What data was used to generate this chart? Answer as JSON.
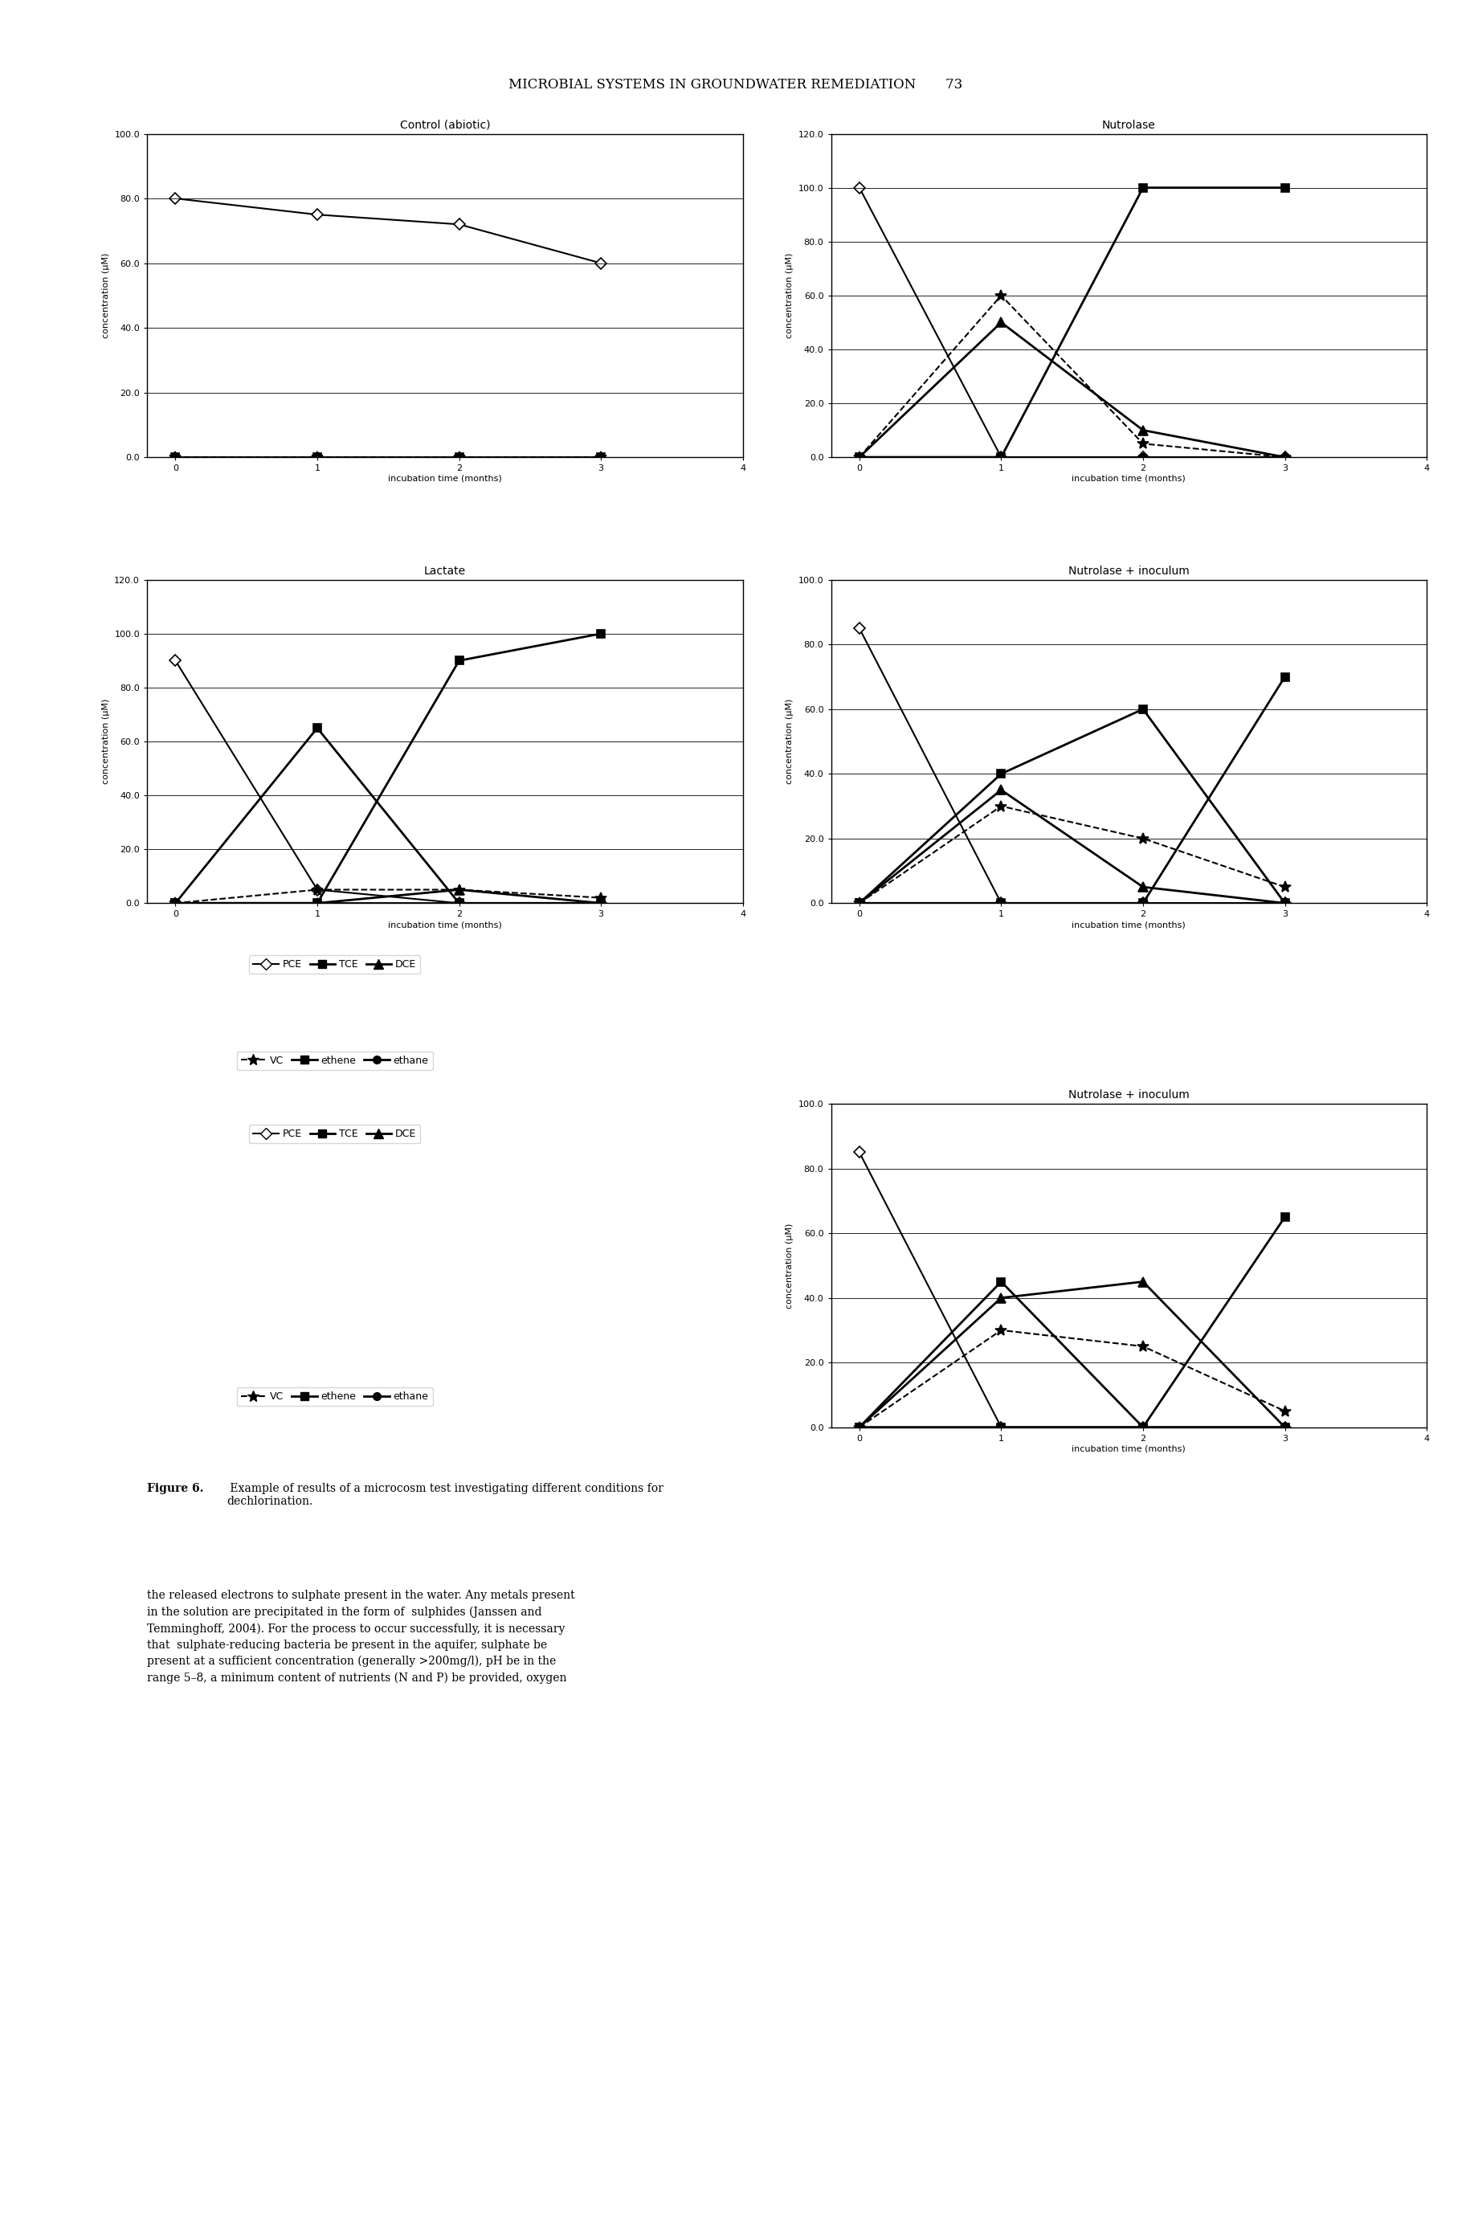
{
  "page_header": "MICROBIAL SYSTEMS IN GROUNDWATER REMEDIATION     73",
  "plots": {
    "control_abiotic": {
      "title": "Control (abiotic)",
      "ylim": [
        0,
        100
      ],
      "yticks": [
        0.0,
        20.0,
        40.0,
        60.0,
        80.0,
        100.0
      ],
      "xlim": [
        -0.2,
        4
      ],
      "xticks": [
        0,
        1,
        2,
        3,
        4
      ],
      "PCE": [
        80,
        75,
        72,
        60
      ],
      "TCE": [
        0,
        0,
        0,
        0
      ],
      "DCE": [
        null,
        null,
        null,
        null
      ],
      "VC": [
        0,
        0,
        0,
        0
      ],
      "ethene": [
        null,
        null,
        null,
        null
      ],
      "ethane": [
        null,
        null,
        null,
        null
      ]
    },
    "nutrolase": {
      "title": "Nutrolase",
      "ylim": [
        0,
        120
      ],
      "yticks": [
        0.0,
        20.0,
        40.0,
        60.0,
        80.0,
        100.0,
        120.0
      ],
      "xlim": [
        -0.2,
        4
      ],
      "xticks": [
        0,
        1,
        2,
        3,
        4
      ],
      "PCE": [
        100,
        0,
        0,
        0
      ],
      "TCE": [
        0,
        0,
        100,
        100
      ],
      "DCE": [
        0,
        50,
        10,
        0
      ],
      "VC": [
        0,
        60,
        5,
        0
      ],
      "ethene": [
        null,
        null,
        null,
        null
      ],
      "ethane": [
        0,
        0,
        0,
        0
      ]
    },
    "lactate": {
      "title": "Lactate",
      "ylim": [
        0,
        120
      ],
      "yticks": [
        0.0,
        20.0,
        40.0,
        60.0,
        80.0,
        100.0,
        120.0
      ],
      "xlim": [
        -0.2,
        4
      ],
      "xticks": [
        0,
        1,
        2,
        3,
        4
      ],
      "PCE": [
        90,
        5,
        0,
        0
      ],
      "TCE": [
        0,
        65,
        0,
        0
      ],
      "DCE": [
        0,
        0,
        5,
        0
      ],
      "VC": [
        0,
        5,
        5,
        2
      ],
      "ethene": [
        0,
        0,
        90,
        100
      ],
      "ethane": [
        0,
        0,
        0,
        0
      ]
    },
    "nutrolase_inoculum1": {
      "title": "Nutrolase + inoculum",
      "ylim": [
        0,
        100
      ],
      "yticks": [
        0.0,
        20.0,
        40.0,
        60.0,
        80.0,
        100.0
      ],
      "xlim": [
        -0.2,
        4
      ],
      "xticks": [
        0,
        1,
        2,
        3,
        4
      ],
      "PCE": [
        85,
        0,
        0,
        0
      ],
      "TCE": [
        0,
        40,
        60,
        0
      ],
      "DCE": [
        0,
        35,
        5,
        0
      ],
      "VC": [
        0,
        30,
        20,
        5
      ],
      "ethene": [
        0,
        0,
        0,
        70
      ],
      "ethane": [
        0,
        0,
        0,
        0
      ]
    },
    "nutrolase_inoculum2": {
      "title": "Nutrolase + inoculum",
      "ylim": [
        0,
        100
      ],
      "yticks": [
        0.0,
        20.0,
        40.0,
        60.0,
        80.0,
        100.0
      ],
      "xlim": [
        -0.2,
        4
      ],
      "xticks": [
        0,
        1,
        2,
        3,
        4
      ],
      "PCE": [
        85,
        0,
        0,
        0
      ],
      "TCE": [
        0,
        45,
        0,
        0
      ],
      "DCE": [
        0,
        40,
        45,
        0
      ],
      "VC": [
        0,
        30,
        25,
        5
      ],
      "ethene": [
        0,
        0,
        0,
        65
      ],
      "ethane": [
        0,
        0,
        0,
        0
      ]
    }
  },
  "figure_caption_bold": "Figure 6.",
  "figure_caption_normal": " Example of results of a microcosm test investigating different conditions for\ndechlorination.",
  "body_text": "the released electrons to sulphate present in the water. Any metals present\nin the solution are precipitated in the form of  sulphides (Janssen and\nTemminghoff, 2004). For the process to occur successfully, it is necessary\nthat  sulphate-reducing bacteria be present in the aquifer, sulphate be\npresent at a sufficient concentration (generally >200mg/l), pH be in the\nrange 5–8, a minimum content of nutrients (N and P) be provided, oxygen"
}
